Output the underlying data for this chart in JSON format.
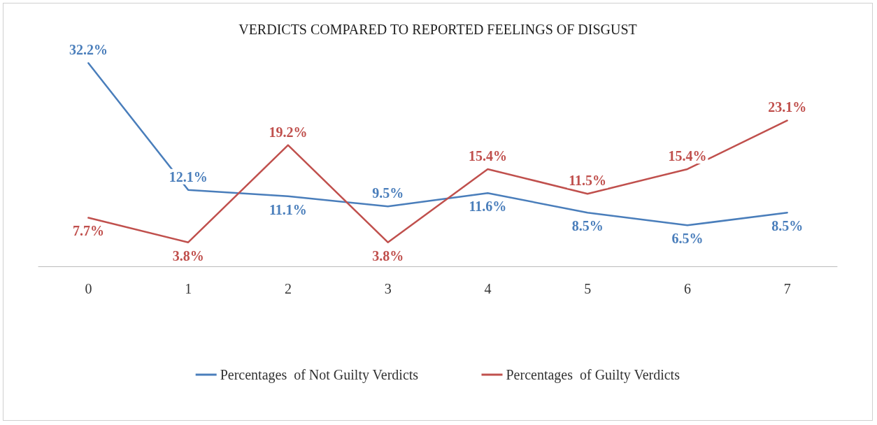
{
  "chart_data": {
    "type": "line",
    "title": "VERDICTS COMPARED TO REPORTED FEELINGS OF DISGUST",
    "categories": [
      "0",
      "1",
      "2",
      "3",
      "4",
      "5",
      "6",
      "7"
    ],
    "series": [
      {
        "name": "Percentages  of Not Guilty Verdicts",
        "color": "#4a7ebb",
        "values": [
          32.2,
          12.1,
          11.1,
          9.5,
          11.6,
          8.5,
          6.5,
          8.5
        ],
        "value_labels": [
          "32.2%",
          "12.1%",
          "11.1%",
          "9.5%",
          "11.6%",
          "8.5%",
          "6.5%",
          "8.5%"
        ]
      },
      {
        "name": "Percentages  of Guilty Verdicts",
        "color": "#c0504d",
        "values": [
          7.7,
          3.8,
          19.2,
          3.8,
          15.4,
          11.5,
          15.4,
          23.1
        ],
        "value_labels": [
          "7.7%",
          "3.8%",
          "19.2%",
          "3.8%",
          "15.4%",
          "11.5%",
          "15.4%",
          "23.1%"
        ]
      }
    ],
    "tick_labels": "x",
    "legend": "bottom",
    "grid": false,
    "marker": "none",
    "line_style": "solid"
  }
}
